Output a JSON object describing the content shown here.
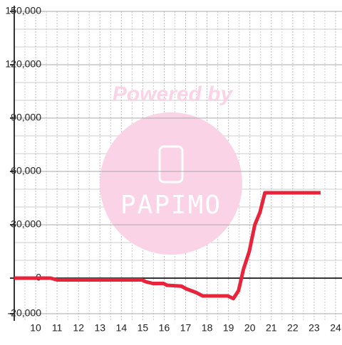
{
  "chart_data": {
    "type": "line",
    "watermark": {
      "line1": "Powered by",
      "line2": "PAPIMO"
    },
    "series": [
      {
        "color": "#e8233a",
        "x": [
          9,
          10.7,
          11,
          14.97,
          15.13,
          15.47,
          15.97,
          16.13,
          16.8,
          17.03,
          17.47,
          17.8,
          18.97,
          19.23,
          19.47,
          19.7,
          19.97,
          20.23,
          20.47,
          20.7,
          23.3
        ],
        "values": [
          0,
          0,
          -1000,
          -1000,
          -2000,
          -3000,
          -3000,
          -4000,
          -4500,
          -6000,
          -8000,
          -10000,
          -10000,
          -11500,
          -7000,
          5000,
          15000,
          30000,
          37000,
          48000,
          48000
        ]
      }
    ],
    "xlim": [
      9,
      24.3
    ],
    "xticks": [
      10,
      11,
      12,
      13,
      14,
      15,
      16,
      17,
      18,
      19,
      20,
      21,
      22,
      23,
      24
    ],
    "ylim": [
      -24000,
      150000
    ],
    "yticks": [
      {
        "value": -20000,
        "label": "-20,000"
      },
      {
        "value": 0,
        "label": "0"
      },
      {
        "value": 30000,
        "label": "30,000"
      },
      {
        "value": 60000,
        "label": "60,000"
      },
      {
        "value": 90000,
        "label": "90,000"
      },
      {
        "value": 120000,
        "label": "120,000"
      },
      {
        "value": 150000,
        "label": "150,000"
      }
    ],
    "grid": true
  }
}
